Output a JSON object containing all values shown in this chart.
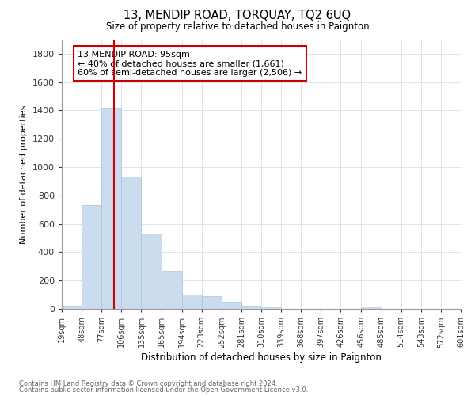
{
  "title": "13, MENDIP ROAD, TORQUAY, TQ2 6UQ",
  "subtitle": "Size of property relative to detached houses in Paignton",
  "xlabel": "Distribution of detached houses by size in Paignton",
  "ylabel": "Number of detached properties",
  "footnote1": "Contains HM Land Registry data © Crown copyright and database right 2024.",
  "footnote2": "Contains public sector information licensed under the Open Government Licence v3.0.",
  "annotation_line1": "13 MENDIP ROAD: 95sqm",
  "annotation_line2": "← 40% of detached houses are smaller (1,661)",
  "annotation_line3": "60% of semi-detached houses are larger (2,506) →",
  "bin_edges": [
    19,
    48,
    77,
    106,
    135,
    165,
    194,
    223,
    252,
    281,
    310,
    339,
    368,
    397,
    426,
    456,
    485,
    514,
    543,
    572,
    601
  ],
  "bin_labels": [
    "19sqm",
    "48sqm",
    "77sqm",
    "106sqm",
    "135sqm",
    "165sqm",
    "194sqm",
    "223sqm",
    "252sqm",
    "281sqm",
    "310sqm",
    "339sqm",
    "368sqm",
    "397sqm",
    "426sqm",
    "456sqm",
    "485sqm",
    "514sqm",
    "543sqm",
    "572sqm",
    "601sqm"
  ],
  "counts": [
    20,
    730,
    1420,
    935,
    530,
    270,
    100,
    90,
    50,
    25,
    15,
    0,
    0,
    0,
    0,
    15,
    0,
    0,
    0,
    0
  ],
  "bar_color": "#ccdcef",
  "bar_edge_color": "#a8c4e0",
  "vline_color": "#cc0000",
  "vline_x": 95,
  "annotation_box_color": "#cc0000",
  "grid_color": "#d0d8e8",
  "background_color": "#ffffff",
  "ylim": [
    0,
    1900
  ],
  "yticks": [
    0,
    200,
    400,
    600,
    800,
    1000,
    1200,
    1400,
    1600,
    1800
  ]
}
